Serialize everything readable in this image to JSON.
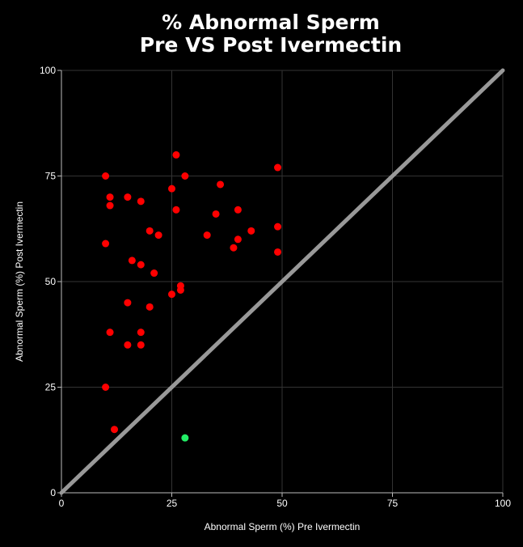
{
  "chart_data": {
    "type": "scatter",
    "title_line1": "% Abnormal Sperm",
    "title_line2": "Pre VS Post Ivermectin",
    "xlabel": "Abnormal Sperm (%) Pre Ivermectin",
    "ylabel": "Abnormal Sperm (%) Post Ivermectin",
    "xlim": [
      0,
      100
    ],
    "ylim": [
      0,
      100
    ],
    "xticks": [
      "0",
      "25",
      "50",
      "75",
      "100"
    ],
    "yticks": [
      "0",
      "25",
      "50",
      "75",
      "100"
    ],
    "grid": true,
    "colors": {
      "background": "#000000",
      "grid": "#333333",
      "axis": "#bbbbbb",
      "increase": "#ff0000",
      "decrease": "#22ee66",
      "reference_line": "#999999"
    },
    "reference_line": {
      "x": [
        0,
        100
      ],
      "y": [
        0,
        100
      ]
    },
    "series": [
      {
        "color": "#ff0000",
        "points": [
          [
            10,
            75
          ],
          [
            11,
            70
          ],
          [
            11,
            68
          ],
          [
            10,
            59
          ],
          [
            15,
            70
          ],
          [
            18,
            69
          ],
          [
            26,
            80
          ],
          [
            28,
            75
          ],
          [
            25,
            72
          ],
          [
            26,
            67
          ],
          [
            36,
            73
          ],
          [
            35,
            66
          ],
          [
            40,
            67
          ],
          [
            49,
            77
          ],
          [
            49,
            63
          ],
          [
            43,
            62
          ],
          [
            40,
            60
          ],
          [
            39,
            58
          ],
          [
            33,
            61
          ],
          [
            49,
            57
          ],
          [
            20,
            62
          ],
          [
            22,
            61
          ],
          [
            16,
            55
          ],
          [
            18,
            54
          ],
          [
            21,
            52
          ],
          [
            27,
            49
          ],
          [
            27,
            48
          ],
          [
            25,
            47
          ],
          [
            15,
            45
          ],
          [
            20,
            44
          ],
          [
            11,
            38
          ],
          [
            18,
            38
          ],
          [
            15,
            35
          ],
          [
            18,
            35
          ],
          [
            10,
            25
          ],
          [
            12,
            15
          ]
        ]
      },
      {
        "color": "#22ee66",
        "points": [
          [
            28,
            13
          ]
        ]
      }
    ]
  }
}
